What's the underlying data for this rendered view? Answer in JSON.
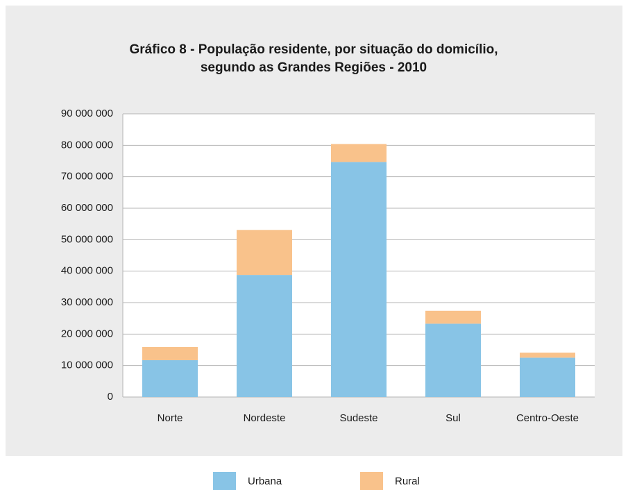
{
  "chart_data": {
    "type": "bar",
    "stacked": true,
    "title": [
      "Gráfico 8 - População residente, por situação do domicílio,",
      "segundo as Grandes Regiões - 2010"
    ],
    "categories": [
      "Norte",
      "Nordeste",
      "Sudeste",
      "Sul",
      "Centro-Oeste"
    ],
    "series": [
      {
        "name": "Urbana",
        "color": "#88c4e6",
        "values": [
          11700000,
          38800000,
          74700000,
          23300000,
          12500000
        ]
      },
      {
        "name": "Rural",
        "color": "#f9c28b",
        "values": [
          4200000,
          14300000,
          5700000,
          4100000,
          1600000
        ]
      }
    ],
    "ylim": [
      0,
      90000000
    ],
    "yticks": [
      0,
      {
        "value": 10000000,
        "label": "10 000 000"
      },
      {
        "value": 20000000,
        "label": "20 000 000"
      },
      {
        "value": 30000000,
        "label": "30 000 000"
      },
      {
        "value": 40000000,
        "label": "40 000 000"
      },
      {
        "value": 50000000,
        "label": "50 000 000"
      },
      {
        "value": 60000000,
        "label": "60 000 000"
      },
      {
        "value": 70000000,
        "label": "70 000 000"
      },
      {
        "value": 80000000,
        "label": "80 000 000"
      },
      {
        "value": 90000000,
        "label": "90 000 000"
      }
    ],
    "grid": true,
    "legend": "bottom"
  }
}
